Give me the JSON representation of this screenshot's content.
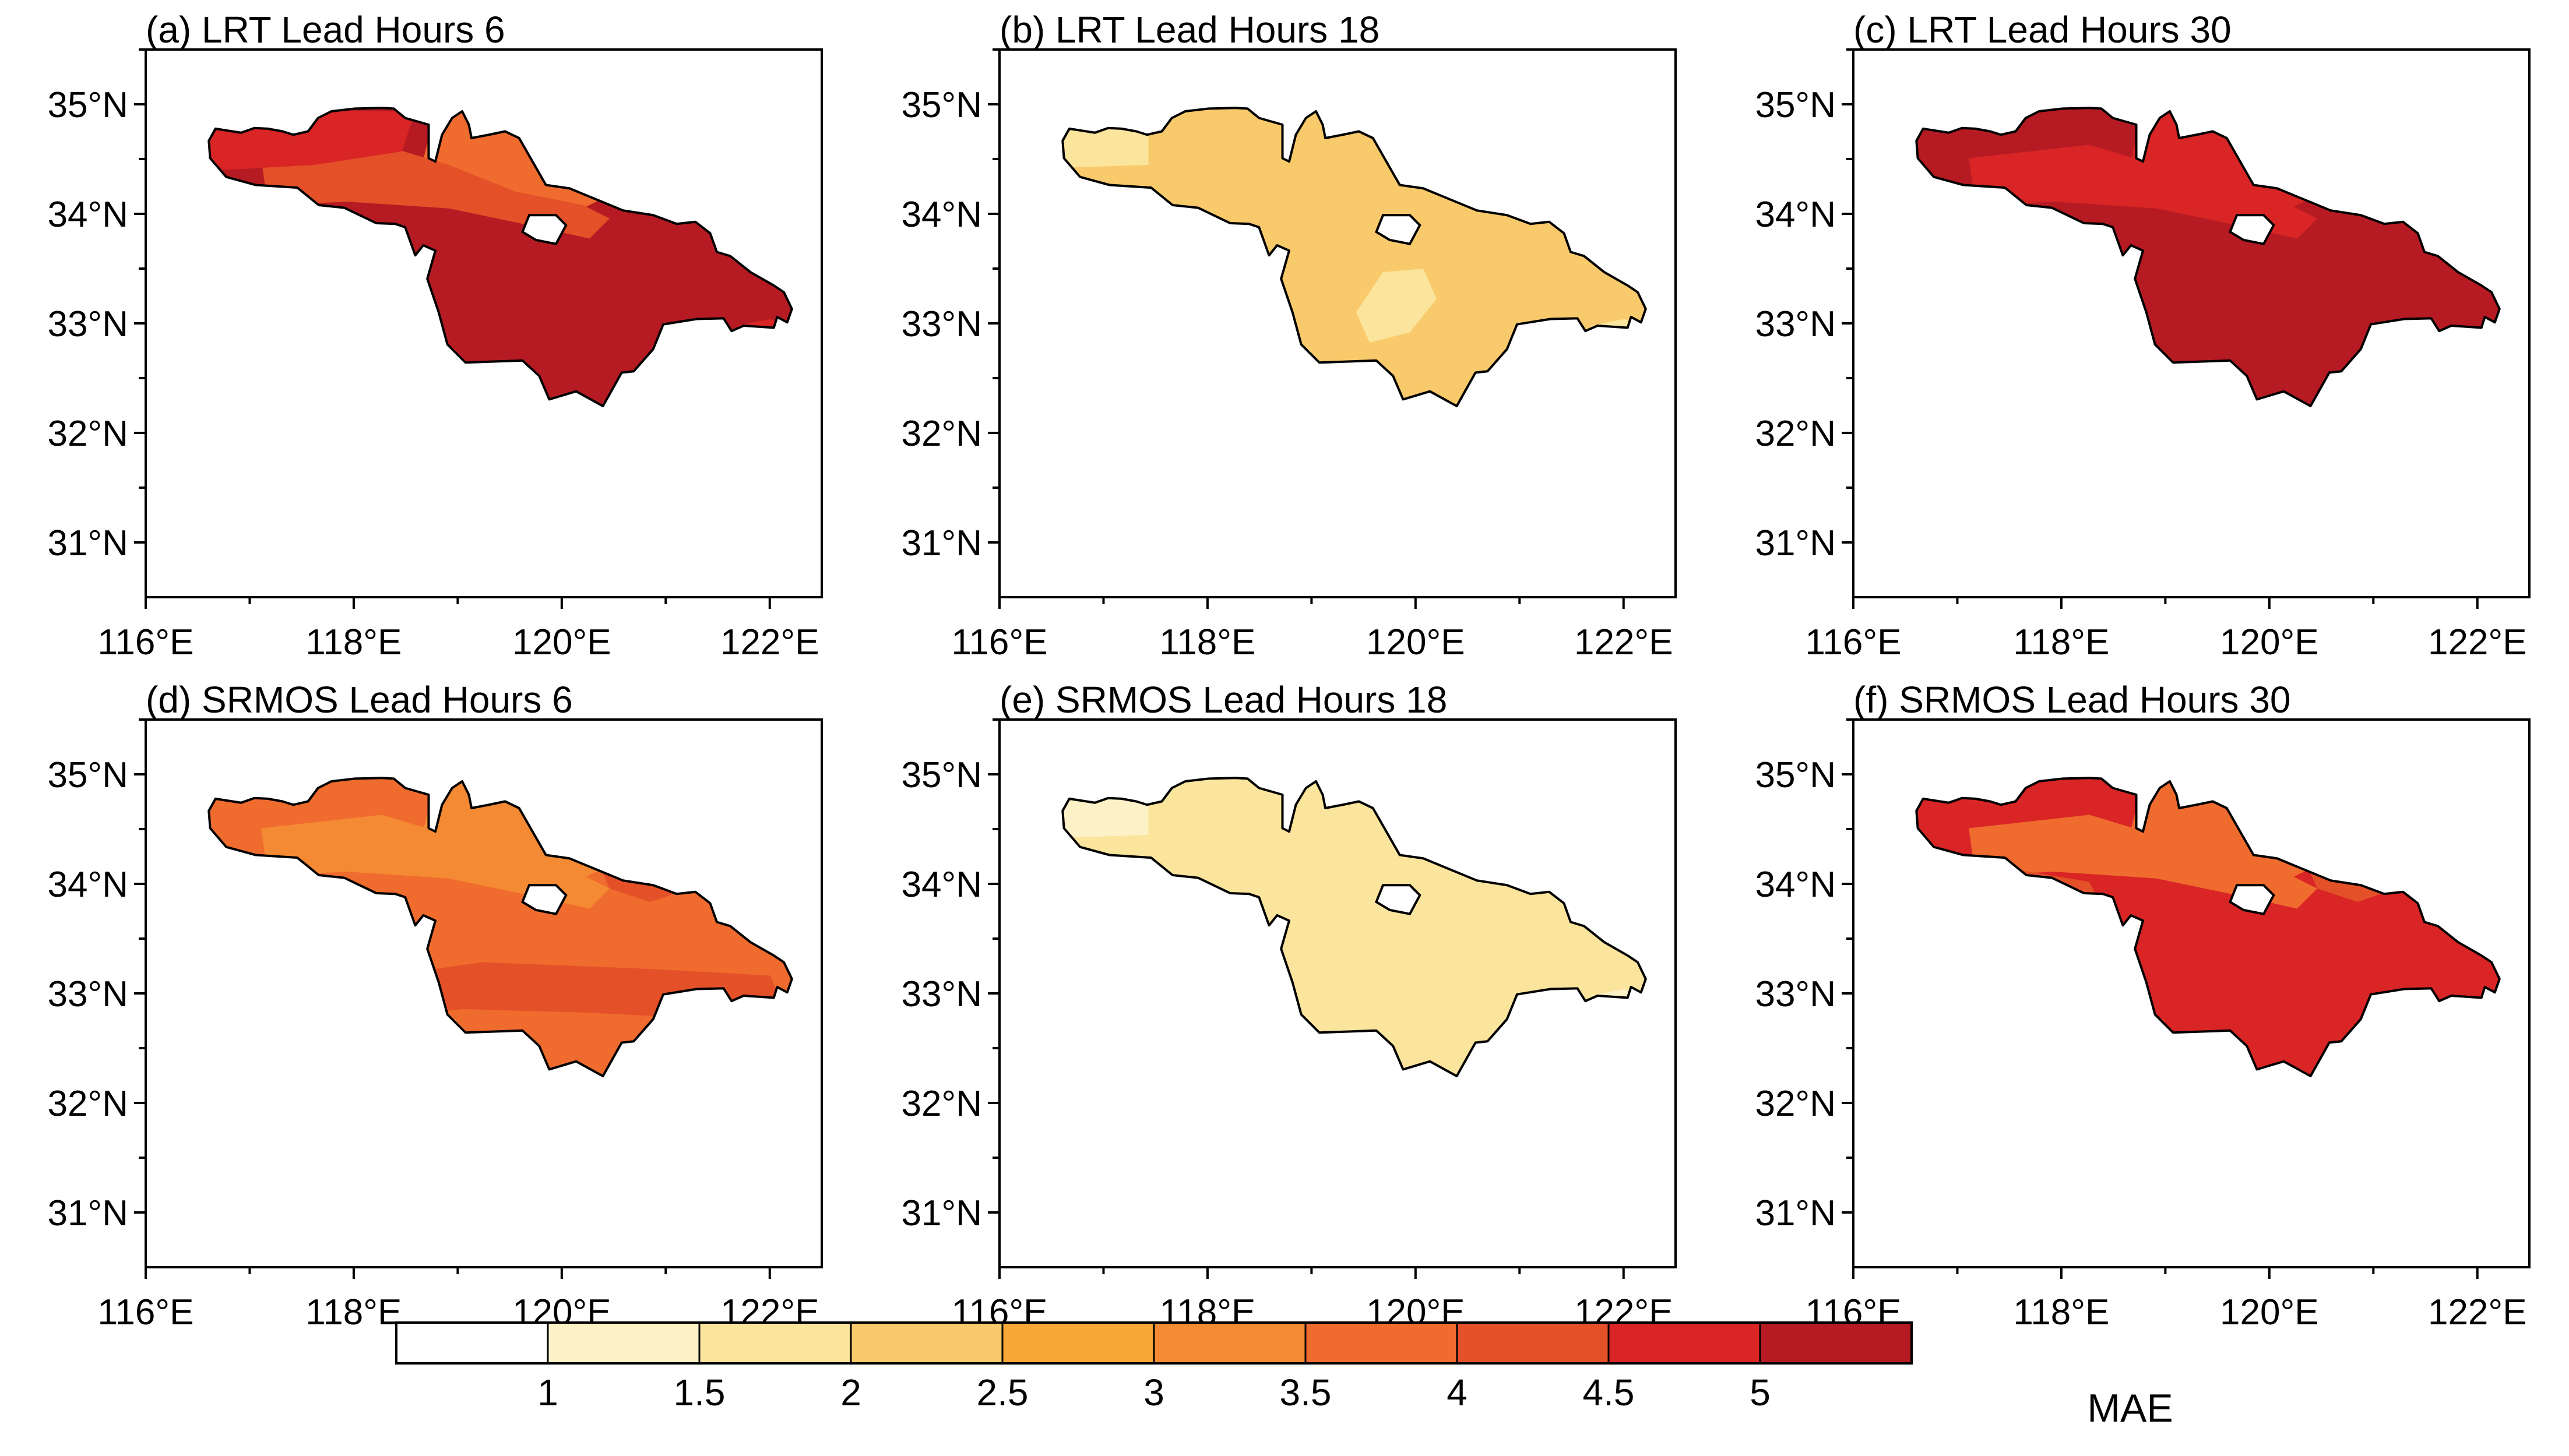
{
  "figure": {
    "panels": [
      {
        "title": "(a) LRT Lead Hours 6",
        "model": "LRT",
        "lead_hours": 6,
        "base_class": 9,
        "zones": [
          [
            6,
            "nw-north"
          ],
          [
            7,
            "nw-band"
          ],
          [
            8,
            "northwest"
          ],
          [
            8,
            "south-sw"
          ],
          [
            8,
            "far-east"
          ]
        ]
      },
      {
        "title": "(b) LRT Lead Hours 18",
        "model": "LRT",
        "lead_hours": 18,
        "base_class": 3,
        "zones": [
          [
            2,
            "far-west"
          ],
          [
            2,
            "central-blob"
          ],
          [
            2,
            "south-sw"
          ],
          [
            2,
            "far-east"
          ]
        ]
      },
      {
        "title": "(c) LRT Lead Hours 30",
        "model": "LRT",
        "lead_hours": 30,
        "base_class": 9,
        "zones": [
          [
            8,
            "nw-north"
          ],
          [
            8,
            "nw-band"
          ]
        ]
      },
      {
        "title": "(d) SRMOS Lead Hours 6",
        "model": "SRMOS",
        "lead_hours": 6,
        "base_class": 6,
        "zones": [
          [
            5,
            "nw-north"
          ],
          [
            5,
            "nw-band"
          ],
          [
            5,
            "south-sw"
          ],
          [
            7,
            "central-south"
          ],
          [
            7,
            "nw-east"
          ]
        ]
      },
      {
        "title": "(e) SRMOS Lead Hours 18",
        "model": "SRMOS",
        "lead_hours": 18,
        "base_class": 2,
        "zones": [
          [
            1,
            "far-west"
          ],
          [
            1,
            "far-east"
          ]
        ]
      },
      {
        "title": "(f) SRMOS Lead Hours 30",
        "model": "SRMOS",
        "lead_hours": 30,
        "base_class": 8,
        "zones": [
          [
            6,
            "nw-north"
          ],
          [
            6,
            "nw-band"
          ],
          [
            7,
            "nw-east"
          ],
          [
            7,
            "nw-west"
          ],
          [
            7,
            "south-sw"
          ]
        ]
      }
    ],
    "x_ticks": [
      "116°E",
      "118°E",
      "120°E",
      "122°E"
    ],
    "y_ticks": [
      "35°N",
      "34°N",
      "33°N",
      "32°N",
      "31°N"
    ],
    "lon_range": [
      116,
      122.5
    ],
    "lat_range": [
      30.5,
      35.5
    ]
  },
  "colorbar": {
    "title": "MAE",
    "levels": [
      "1",
      "1.5",
      "2",
      "2.5",
      "3",
      "3.5",
      "4",
      "4.5",
      "5"
    ],
    "colors": [
      "#ffffff",
      "#fdf1c7",
      "#fbe59d",
      "#f9ca6b",
      "#f7a836",
      "#f48a33",
      "#f06b2e",
      "#e45028",
      "#d92525",
      "#b61b23"
    ]
  }
}
